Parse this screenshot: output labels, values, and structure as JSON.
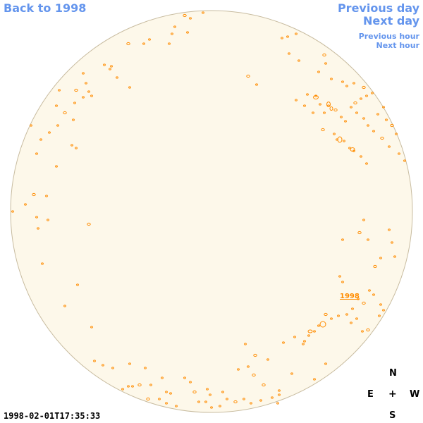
{
  "nav": {
    "back_label": "Back to 1998",
    "prev_day_label": "Previous day",
    "next_day_label": "Next day",
    "prev_hour_label": "Previous hour",
    "next_hour_label": "Next hour"
  },
  "disk": {
    "fill_color": "#fdf8ea",
    "edge_color": "#c8bca0",
    "feature_color": "#ff8c00"
  },
  "region": {
    "label": "1998"
  },
  "compass": {
    "north": "N",
    "east": "E",
    "center": "+",
    "west": "W",
    "south": "S"
  },
  "timestamp": "1998-02-01T17:35:33"
}
